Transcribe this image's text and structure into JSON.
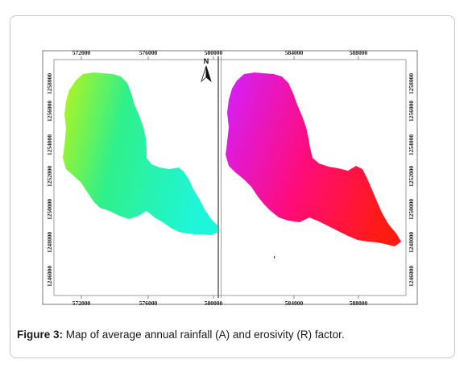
{
  "figure": {
    "caption_label": "Figure 3:",
    "caption_text": " Map of average annual rainfall (A) and erosivity (R) factor.",
    "north_label": "N",
    "panels": [
      {
        "id": "A",
        "top_ticks": [
          "572000",
          "576000",
          "580000"
        ],
        "bottom_ticks": [
          "572000",
          "576000",
          "580000"
        ],
        "left_ticks": [
          "1258000",
          "1256000",
          "1254000",
          "1252000",
          "1250000",
          "1248000",
          "1246000"
        ],
        "colors": [
          "#b8f51a",
          "#2ff08a",
          "#1ff5d8"
        ]
      },
      {
        "id": "R",
        "top_ticks": [
          "584000",
          "588000"
        ],
        "bottom_ticks": [
          "584000",
          "588000"
        ],
        "right_ticks": [
          "1258000",
          "1256000",
          "1254000",
          "1252000",
          "1250000",
          "1248000",
          "1246000"
        ],
        "colors": [
          "#d81ef0",
          "#ff0c7a",
          "#ff1a14"
        ]
      }
    ]
  }
}
